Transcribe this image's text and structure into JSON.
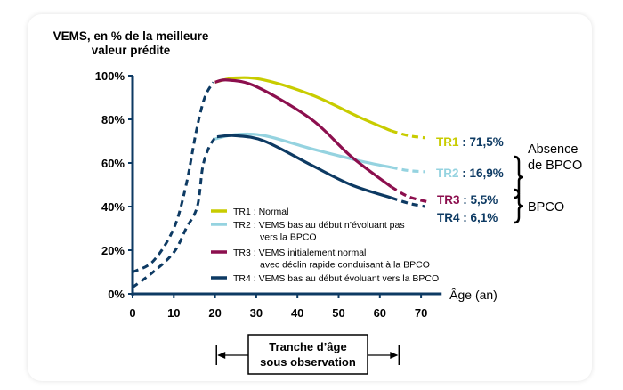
{
  "chart_data": {
    "type": "line",
    "ylabel_line1": "VEMS, en % de la meilleure",
    "ylabel_line2": "valeur prédite",
    "xlabel": "Âge (an)",
    "xlim": [
      0,
      75
    ],
    "ylim": [
      0,
      100
    ],
    "x_ticks": [
      "0",
      "10",
      "20",
      "30",
      "40",
      "50",
      "60",
      "70"
    ],
    "y_ticks": [
      "0%",
      "20%",
      "40%",
      "60%",
      "80%",
      "100%"
    ],
    "growth_curves": [
      {
        "name": "croissance haute",
        "style": "dashed",
        "color": "#0d3a63",
        "points": [
          [
            0,
            10
          ],
          [
            5,
            15
          ],
          [
            10,
            30
          ],
          [
            13,
            50
          ],
          [
            15.5,
            75
          ],
          [
            17.5,
            90
          ],
          [
            19.6,
            97
          ]
        ]
      },
      {
        "name": "croissance basse",
        "style": "dashed",
        "color": "#0d3a63",
        "points": [
          [
            0,
            3
          ],
          [
            5,
            10
          ],
          [
            10,
            19
          ],
          [
            13,
            30
          ],
          [
            15.7,
            40
          ],
          [
            17,
            58
          ],
          [
            18.5,
            67
          ],
          [
            20,
            71.5
          ]
        ]
      }
    ],
    "series": [
      {
        "name": "TR1",
        "legend": "TR1 : Normal",
        "color": "#c8cc00",
        "solid": [
          [
            20,
            97
          ],
          [
            25,
            99
          ],
          [
            32,
            98
          ],
          [
            43.7,
            91
          ],
          [
            55,
            81
          ],
          [
            62.8,
            74.7
          ]
        ],
        "dashed": [
          [
            62.8,
            74.7
          ],
          [
            67,
            72.5
          ],
          [
            71,
            71.5
          ]
        ]
      },
      {
        "name": "TR2",
        "legend": "TR2 : VEMS bas au début n’évoluant pas",
        "legend2": "vers la BPCO",
        "color": "#95d3e0",
        "solid": [
          [
            20,
            71
          ],
          [
            25,
            73
          ],
          [
            32,
            72.5
          ],
          [
            43.4,
            66.5
          ],
          [
            55,
            61
          ],
          [
            62.8,
            58
          ]
        ],
        "dashed": [
          [
            62.8,
            58
          ],
          [
            67,
            56.5
          ],
          [
            71,
            56
          ]
        ]
      },
      {
        "name": "TR3",
        "legend": "TR3 : VEMS initialement normal",
        "legend2": "avec déclin rapide conduisant à la BPCO",
        "color": "#8c0f4e",
        "solid": [
          [
            20,
            97
          ],
          [
            23,
            98
          ],
          [
            30,
            95
          ],
          [
            43.4,
            80
          ],
          [
            53,
            63
          ],
          [
            62.8,
            49
          ]
        ],
        "dashed": [
          [
            62.8,
            49
          ],
          [
            67,
            44.5
          ],
          [
            72,
            42
          ]
        ]
      },
      {
        "name": "TR4",
        "legend": "TR4 : VEMS bas au début évoluant vers la BPCO",
        "color": "#0d3a63",
        "solid": [
          [
            20.5,
            72
          ],
          [
            25,
            72.5
          ],
          [
            32,
            70
          ],
          [
            43.4,
            59
          ],
          [
            53,
            50
          ],
          [
            62.8,
            44
          ]
        ],
        "dashed": [
          [
            62.8,
            44
          ],
          [
            67,
            41.5
          ],
          [
            71,
            40
          ]
        ]
      }
    ],
    "end_labels": [
      {
        "tr": "TR1",
        "value": ": 71,5%",
        "color": "#c8cc00"
      },
      {
        "tr": "TR2",
        "value": ": 16,9%",
        "color": "#95d3e0"
      },
      {
        "tr": "TR3",
        "value": ": 5,5%",
        "color": "#8c0f4e"
      },
      {
        "tr": "TR4",
        "value": ": 6,1%",
        "color": "#0d3a63"
      }
    ],
    "groups": [
      {
        "line1": "Absence",
        "line2": "de BPCO"
      },
      {
        "line1": "BPCO"
      }
    ],
    "annotation": {
      "line1": "Tranche d’âge",
      "line2": "sous observation",
      "range": [
        21,
        64
      ]
    },
    "axis_color": "#0d3a63",
    "value_color": "#0d3a63"
  }
}
